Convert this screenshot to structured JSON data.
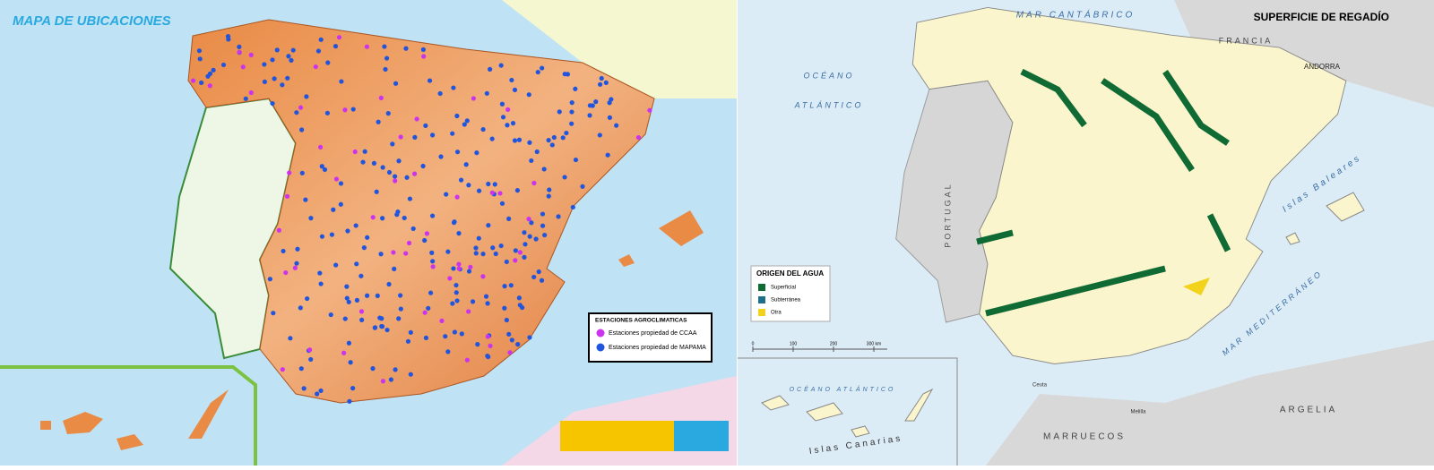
{
  "left_map": {
    "title": "MAPA DE UBICACIONES",
    "legend": {
      "title": "ESTACIONES AGROCLIMATICAS",
      "items": [
        {
          "label": "Estaciones propiedad de CCAA",
          "color": "#cc33ee"
        },
        {
          "label": "Estaciones propiedad de MAPAMA",
          "color": "#2255dd"
        }
      ]
    }
  },
  "right_map": {
    "title": "SUPERFICIE DE REGADÍO",
    "labels": [
      "MAR CANTÁBRICO",
      "FRANCIA",
      "ANDORRA",
      "OCÉANO",
      "ATLÁNTICO",
      "PORTUGAL",
      "Islas Baleares",
      "MAR MEDITERRÁNEO",
      "OCÉANO ATLÁNTICO",
      "Islas Canarias",
      "ARGELIA",
      "MARRUECOS",
      "Ceuta",
      "Melilla"
    ],
    "legend": {
      "title": "ORIGEN DEL AGUA",
      "items": [
        {
          "label": "Superficial",
          "color": "#0f6b33"
        },
        {
          "label": "Subterránea",
          "color": "#1f6e8a"
        },
        {
          "label": "Otra",
          "color": "#f2d21b"
        }
      ]
    },
    "scale": [
      "0",
      "100",
      "200",
      "300 km"
    ]
  }
}
